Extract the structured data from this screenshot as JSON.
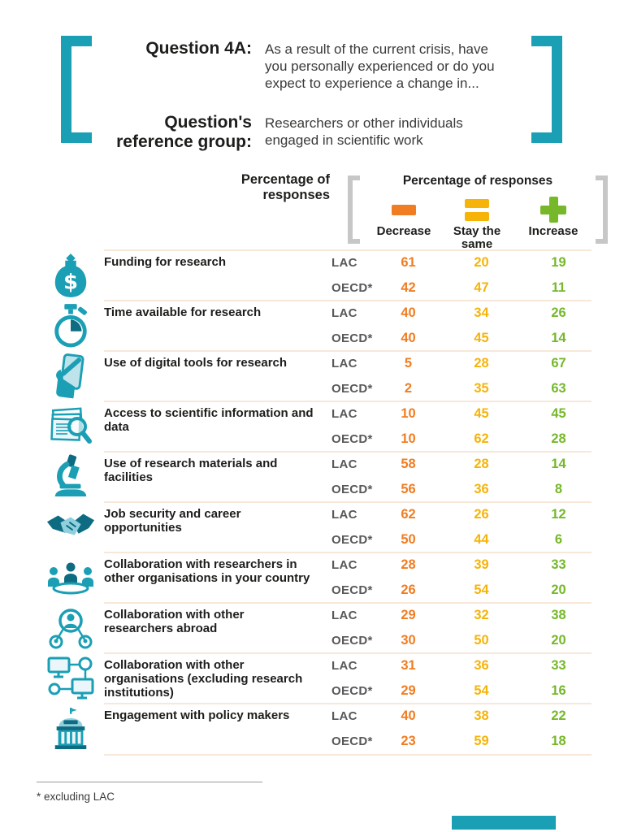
{
  "question": {
    "label": "Question 4A:",
    "text": "As a result of the current crisis, have you personally experienced or do you expect to experience a change in...",
    "ref_label": "Question's reference group:",
    "ref_text": "Researchers or other individuals engaged in scientific work"
  },
  "table_header": {
    "left_title": "Percentage of responses",
    "bracket_title": "Percentage of responses",
    "columns": [
      {
        "key": "decrease",
        "label": "Decrease",
        "icon": "minus-icon",
        "color": "#F07D22"
      },
      {
        "key": "same",
        "label": "Stay the same",
        "icon": "equals-icon",
        "color": "#F6B40A"
      },
      {
        "key": "increase",
        "label": "Increase",
        "icon": "plus-icon",
        "color": "#76B82A"
      }
    ]
  },
  "chart_data": {
    "type": "table",
    "title": "Percentage of responses",
    "group_labels": [
      "LAC",
      "OECD*"
    ],
    "value_columns": [
      "Decrease",
      "Stay the same",
      "Increase"
    ],
    "rows": [
      {
        "icon": "money-bag-icon",
        "category": "Funding for research",
        "groups": [
          {
            "name": "LAC",
            "decrease": 61,
            "same": 20,
            "increase": 19
          },
          {
            "name": "OECD*",
            "decrease": 42,
            "same": 47,
            "increase": 11
          }
        ]
      },
      {
        "icon": "stopwatch-icon",
        "category": "Time available for research",
        "groups": [
          {
            "name": "LAC",
            "decrease": 40,
            "same": 34,
            "increase": 26
          },
          {
            "name": "OECD*",
            "decrease": 40,
            "same": 45,
            "increase": 14
          }
        ]
      },
      {
        "icon": "phone-hand-icon",
        "category": "Use of digital tools for research",
        "groups": [
          {
            "name": "LAC",
            "decrease": 5,
            "same": 28,
            "increase": 67
          },
          {
            "name": "OECD*",
            "decrease": 2,
            "same": 35,
            "increase": 63
          }
        ]
      },
      {
        "icon": "documents-magnifier-icon",
        "category": "Access to scientific information and data",
        "groups": [
          {
            "name": "LAC",
            "decrease": 10,
            "same": 45,
            "increase": 45
          },
          {
            "name": "OECD*",
            "decrease": 10,
            "same": 62,
            "increase": 28
          }
        ]
      },
      {
        "icon": "microscope-icon",
        "category": "Use of research materials and facilities",
        "groups": [
          {
            "name": "LAC",
            "decrease": 58,
            "same": 28,
            "increase": 14
          },
          {
            "name": "OECD*",
            "decrease": 56,
            "same": 36,
            "increase": 8
          }
        ]
      },
      {
        "icon": "handshake-icon",
        "category": "Job security and career opportunities",
        "groups": [
          {
            "name": "LAC",
            "decrease": 62,
            "same": 26,
            "increase": 12
          },
          {
            "name": "OECD*",
            "decrease": 50,
            "same": 44,
            "increase": 6
          }
        ]
      },
      {
        "icon": "people-meeting-icon",
        "category": "Collaboration with researchers in other organisations in your country",
        "groups": [
          {
            "name": "LAC",
            "decrease": 28,
            "same": 39,
            "increase": 33
          },
          {
            "name": "OECD*",
            "decrease": 26,
            "same": 54,
            "increase": 20
          }
        ]
      },
      {
        "icon": "researcher-network-icon",
        "category": "Collaboration with other researchers abroad",
        "groups": [
          {
            "name": "LAC",
            "decrease": 29,
            "same": 32,
            "increase": 38
          },
          {
            "name": "OECD*",
            "decrease": 30,
            "same": 50,
            "increase": 20
          }
        ]
      },
      {
        "icon": "computer-network-icon",
        "category": "Collaboration with other organisations (excluding research institutions)",
        "groups": [
          {
            "name": "LAC",
            "decrease": 31,
            "same": 36,
            "increase": 33
          },
          {
            "name": "OECD*",
            "decrease": 29,
            "same": 54,
            "increase": 16
          }
        ]
      },
      {
        "icon": "government-building-icon",
        "category": "Engagement with policy makers",
        "groups": [
          {
            "name": "LAC",
            "decrease": 40,
            "same": 38,
            "increase": 22
          },
          {
            "name": "OECD*",
            "decrease": 23,
            "same": 59,
            "increase": 18
          }
        ]
      }
    ]
  },
  "footnote": "* excluding LAC",
  "colors": {
    "teal": "#1A9FB5",
    "teal_dark": "#0D6B82",
    "decrease_orange": "#F07D22",
    "same_yellow": "#F6B40A",
    "increase_green": "#76B82A",
    "separator": "#F7E8D9",
    "bracket_gray": "#C7C7C7"
  }
}
